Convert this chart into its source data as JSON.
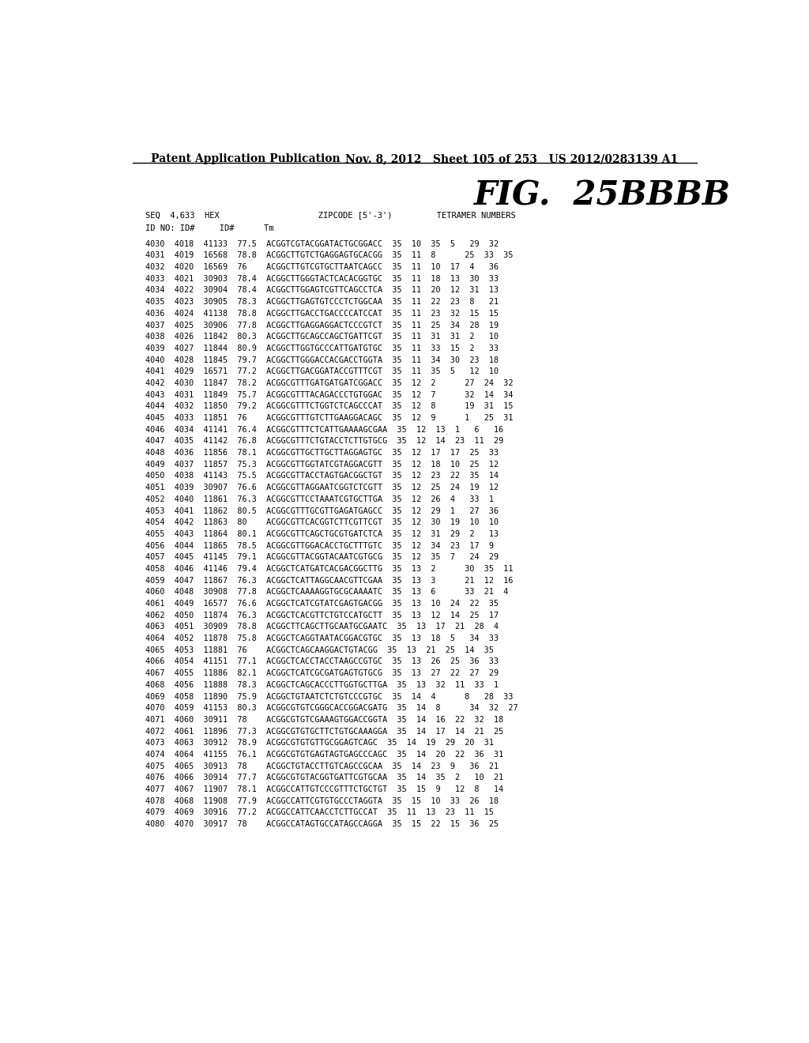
{
  "header_left": "Patent Application Publication",
  "header_right": "Nov. 8, 2012   Sheet 105 of 253   US 2012/0283139 A1",
  "fig_title": "FIG.  25BBBB",
  "col_header1": "SEQ  4,633  HEX                    ZIPCODE [5'-3')         TETRAMER NUMBERS",
  "col_header2": "ID NO: ID#     ID#      Tm",
  "rows": [
    "4030  4018  41133  77.5  ACGGTCGTACGGATACTGCGGACC  35  10  35  5   29  32",
    "4031  4019  16568  78.8  ACGGCTTGTCTGAGGAGTGCACGG  35  11  8      25  33  35",
    "4032  4020  16569  76    ACGGCTTGTCGTGCTTAATCAGCC  35  11  10  17  4   36",
    "4033  4021  30903  78.4  ACGGCTTGGGTACTCACACGGTGC  35  11  18  13  30  33",
    "4034  4022  30904  78.4  ACGGCTTGGAGTCGTTCAGCCTCA  35  11  20  12  31  13",
    "4035  4023  30905  78.3  ACGGCTTGAGTGTCCCTCTGGCAA  35  11  22  23  8   21",
    "4036  4024  41138  78.8  ACGGCTTGACCTGACCCCATCCAT  35  11  23  32  15  15",
    "4037  4025  30906  77.8  ACGGCTTGAGGAGGACTCCCGTCT  35  11  25  34  28  19",
    "4038  4026  11842  80.3  ACGGCTTGCAGCCAGCTGATTCGT  35  11  31  31  2   10",
    "4039  4027  11844  80.9  ACGGCTTGGTGCCCATTGATGTGC  35  11  33  15  2   33",
    "4040  4028  11845  79.7  ACGGCTTGGGACCACGACCTGGTA  35  11  34  30  23  18",
    "4041  4029  16571  77.2  ACGGCTTGACGGATACCGTTTCGT  35  11  35  5   12  10",
    "4042  4030  11847  78.2  ACGGCGTTTGATGATGATCGGACC  35  12  2      27  24  32",
    "4043  4031  11849  75.7  ACGGCGTTTACAGACCCTGTGGAC  35  12  7      32  14  34",
    "4044  4032  11850  79.2  ACGGCGTTTCTGGTCTCAGCCCAT  35  12  8      19  31  15",
    "4045  4033  11851  76    ACGGCGTTTGTCTTGAAGGACAGC  35  12  9      1   25  31",
    "4046  4034  41141  76.4  ACGGCGTTTCTCATTGAAAAGCGAA  35  12  13  1   6   16",
    "4047  4035  41142  76.8  ACGGCGTTTCTGTACCTCTTGTGCG  35  12  14  23  11  29",
    "4048  4036  11856  78.1  ACGGCGTTGCTTGCTTAGGAGTGC  35  12  17  17  25  33",
    "4049  4037  11857  75.3  ACGGCGTTGGTATCGTAGGACGTT  35  12  18  10  25  12",
    "4050  4038  41143  75.5  ACGGCGTTACCTAGTGACGGCTGT  35  12  23  22  35  14",
    "4051  4039  30907  76.6  ACGGCGTTAGGAATCGGTCTCGTT  35  12  25  24  19  12",
    "4052  4040  11861  76.3  ACGGCGTTCCTAAATCGTGCTTGA  35  12  26  4   33  1",
    "4053  4041  11862  80.5  ACGGCGTTTGCGTTGAGATGAGCC  35  12  29  1   27  36",
    "4054  4042  11863  80    ACGGCGTTCACGGTCTTCGTTCGT  35  12  30  19  10  10",
    "4055  4043  11864  80.1  ACGGCGTTCAGCTGCGTGATCTCA  35  12  31  29  2   13",
    "4056  4044  11865  78.5  ACGGCGTTGGACACCTGCTTTGTC  35  12  34  23  17  9",
    "4057  4045  41145  79.1  ACGGCGTTACGGTACAATCGTGCG  35  12  35  7   24  29",
    "4058  4046  41146  79.4  ACGGCTCATGATCACGACGGCTTG  35  13  2      30  35  11",
    "4059  4047  11867  76.3  ACGGCTCATTAGGCAACGTTCGAA  35  13  3      21  12  16",
    "4060  4048  30908  77.8  ACGGCTCAAAAGGTGCGCAAAATC  35  13  6      33  21  4",
    "4061  4049  16577  76.6  ACGGCTCATCGTATCGAGTGACGG  35  13  10  24  22  35",
    "4062  4050  11874  76.3  ACGGCTCACGTTCTGTCCATGCTT  35  13  12  14  25  17",
    "4063  4051  30909  78.8  ACGGCTTCAGCTTGCAATGCGAATC  35  13  17  21  28  4",
    "4064  4052  11878  75.8  ACGGCTCAGGTAATACGGACGTGC  35  13  18  5   34  33",
    "4065  4053  11881  76    ACGGCTCAGCAAGGACTGTACGG  35  13  21  25  14  35",
    "4066  4054  41151  77.1  ACGGCTCACCTACCTAAGCCGTGC  35  13  26  25  36  33",
    "4067  4055  11886  82.1  ACGGCTCATCGCGATGAGTGTGCG  35  13  27  22  27  29",
    "4068  4056  11888  78.3  ACGGCTCAGCACCCTTGGTGCTTGA  35  13  32  11  33  1",
    "4069  4058  11890  75.9  ACGGCTGTAATCTCTGTCCCGTGC  35  14  4      8   28  33",
    "4070  4059  41153  80.3  ACGGCGTGTCGGGCACCGGACGATG  35  14  8      34  32  27",
    "4071  4060  30911  78    ACGGCGTGTCGAAAGTGGACCGGTA  35  14  16  22  32  18",
    "4072  4061  11896  77.3  ACGGCGTGTGCTTCTGTGCAAAGGA  35  14  17  14  21  25",
    "4073  4063  30912  78.9  ACGGCGTGTGTTGCGGAGTCAGC  35  14  19  29  20  31",
    "4074  4064  41155  76.1  ACGGCGTGTGAGTAGTGAGCCCAGC  35  14  20  22  36  31",
    "4075  4065  30913  78    ACGGCTGTACCTTGTCAGCCGCAA  35  14  23  9   36  21",
    "4076  4066  30914  77.7  ACGGCGTGTACGGTGATTCGTGCAA  35  14  35  2   10  21",
    "4077  4067  11907  78.1  ACGGCCATTGTCCCGTTTCTGCTGT  35  15  9   12  8   14",
    "4078  4068  11908  77.9  ACGGCCATTCGTGTGCCCTAGGTA  35  15  10  33  26  18",
    "4079  4069  30916  77.2  ACGGCCATTCAACCTCTTGCCAT  35  11  13  23  11  15",
    "4080  4070  30917  78    ACGGCCATAGTGCCATAGCCAGGA  35  15  22  15  36  25"
  ],
  "bg_color": "#ffffff",
  "text_color": "#000000",
  "header_fontsize": 10,
  "fig_title_fontsize": 30,
  "mono_fontsize": 7.3,
  "col_header_fontsize": 7.5
}
